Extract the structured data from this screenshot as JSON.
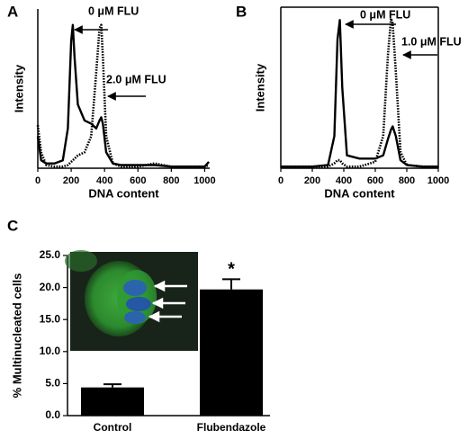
{
  "chart_data": [
    {
      "type": "line",
      "label": "A",
      "ylabel": "Intensity",
      "xlabel": "DNA content",
      "x": [
        0,
        20,
        50,
        100,
        150,
        180,
        200,
        210,
        220,
        240,
        280,
        320,
        350,
        370,
        380,
        390,
        410,
        450,
        500,
        600,
        700,
        800,
        900,
        1000,
        1025
      ],
      "series": [
        {
          "name": "0 μM FLU",
          "color": "#000000",
          "style": "solid",
          "values": [
            20,
            5,
            3,
            3,
            5,
            25,
            80,
            90,
            70,
            40,
            30,
            28,
            25,
            30,
            32,
            28,
            10,
            3,
            2,
            2,
            2,
            1,
            1,
            1,
            4
          ]
        },
        {
          "name": "2.0 μM FLU",
          "color": "#000000",
          "style": "dotted",
          "values": [
            27,
            10,
            2,
            1,
            1,
            2,
            4,
            5,
            6,
            8,
            10,
            20,
            60,
            88,
            90,
            70,
            20,
            3,
            1,
            1,
            3,
            1,
            1,
            1,
            2
          ]
        }
      ],
      "xlim": [
        0,
        1030
      ],
      "xticks": [
        0,
        200,
        400,
        600,
        800,
        1000
      ],
      "ylim": [
        0,
        100
      ],
      "box": false
    },
    {
      "type": "line",
      "label": "B",
      "ylabel": "Intensity",
      "xlabel": "DNA content",
      "x": [
        0,
        100,
        200,
        300,
        340,
        360,
        375,
        390,
        420,
        500,
        600,
        650,
        680,
        700,
        710,
        730,
        760,
        800,
        900,
        1000
      ],
      "series": [
        {
          "name": "0 μM FLU",
          "color": "#000000",
          "style": "solid",
          "values": [
            1,
            1,
            1,
            2,
            20,
            80,
            92,
            50,
            8,
            6,
            6,
            8,
            18,
            24,
            26,
            20,
            5,
            2,
            1,
            1
          ]
        },
        {
          "name": "1.0 μM FLU",
          "color": "#000000",
          "style": "dotted",
          "values": [
            1,
            1,
            1,
            1,
            3,
            5,
            5,
            3,
            1,
            1,
            4,
            20,
            70,
            93,
            90,
            60,
            10,
            2,
            1,
            1
          ]
        }
      ],
      "xlim": [
        0,
        1000
      ],
      "xticks": [
        0,
        200,
        400,
        600,
        800,
        1000
      ],
      "ylim": [
        0,
        100
      ],
      "box": true
    },
    {
      "type": "bar",
      "label": "C",
      "ylabel": "% Multinucleated cells",
      "categories": [
        "Control",
        "Flubendazole"
      ],
      "values": [
        4.4,
        19.7
      ],
      "error": [
        0.5,
        1.6
      ],
      "color": "#000000",
      "annotation": "*",
      "ylim": [
        0,
        25
      ],
      "yticks": [
        {
          "value": 0,
          "label": "0.0"
        },
        {
          "value": 5,
          "label": "5.0"
        },
        {
          "value": 10,
          "label": "10.0"
        },
        {
          "value": 15,
          "label": "15.0"
        },
        {
          "value": 20,
          "label": "20.0"
        },
        {
          "value": 25,
          "label": "25.0"
        }
      ]
    }
  ]
}
